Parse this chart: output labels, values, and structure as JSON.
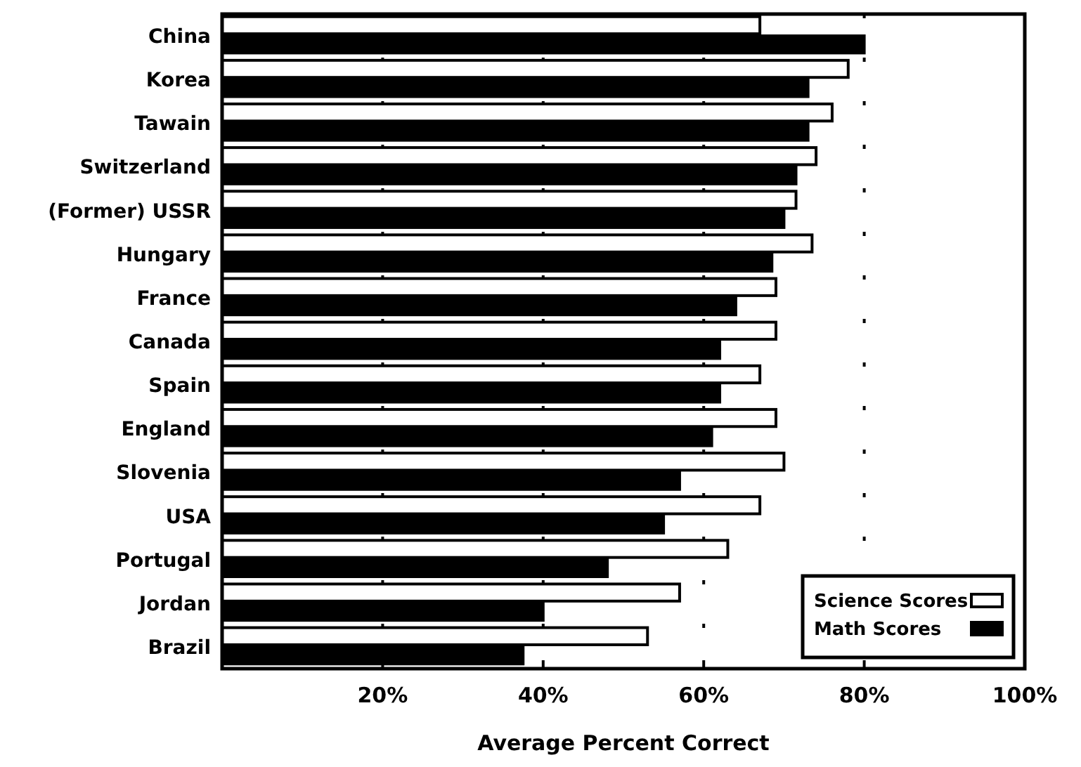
{
  "chart_data": {
    "type": "bar",
    "orientation": "horizontal",
    "xlabel": "Average Percent Correct",
    "categories": [
      "China",
      "Korea",
      "Tawain",
      "Switzerland",
      "(Former) USSR",
      "Hungary",
      "France",
      "Canada",
      "Spain",
      "England",
      "Slovenia",
      "USA",
      "Portugal",
      "Jordan",
      "Brazil"
    ],
    "series": [
      {
        "name": "Science Scores",
        "color": "#ffffff",
        "values": [
          67,
          78,
          76,
          74,
          71.5,
          73.5,
          69,
          69,
          67,
          69,
          70,
          67,
          63,
          57,
          53
        ]
      },
      {
        "name": "Math Scores",
        "color": "#000000",
        "values": [
          80,
          73,
          73,
          71.5,
          70,
          68.5,
          64,
          62,
          62,
          61,
          57,
          55,
          48,
          40,
          37.5
        ]
      }
    ],
    "xlim": [
      0,
      100
    ],
    "xticks": [
      {
        "value": 20,
        "label": "20%"
      },
      {
        "value": 40,
        "label": "40%"
      },
      {
        "value": 60,
        "label": "60%"
      },
      {
        "value": 80,
        "label": "80%"
      },
      {
        "value": 100,
        "label": "100%"
      }
    ],
    "grid": "x",
    "legend": "bottom right"
  }
}
